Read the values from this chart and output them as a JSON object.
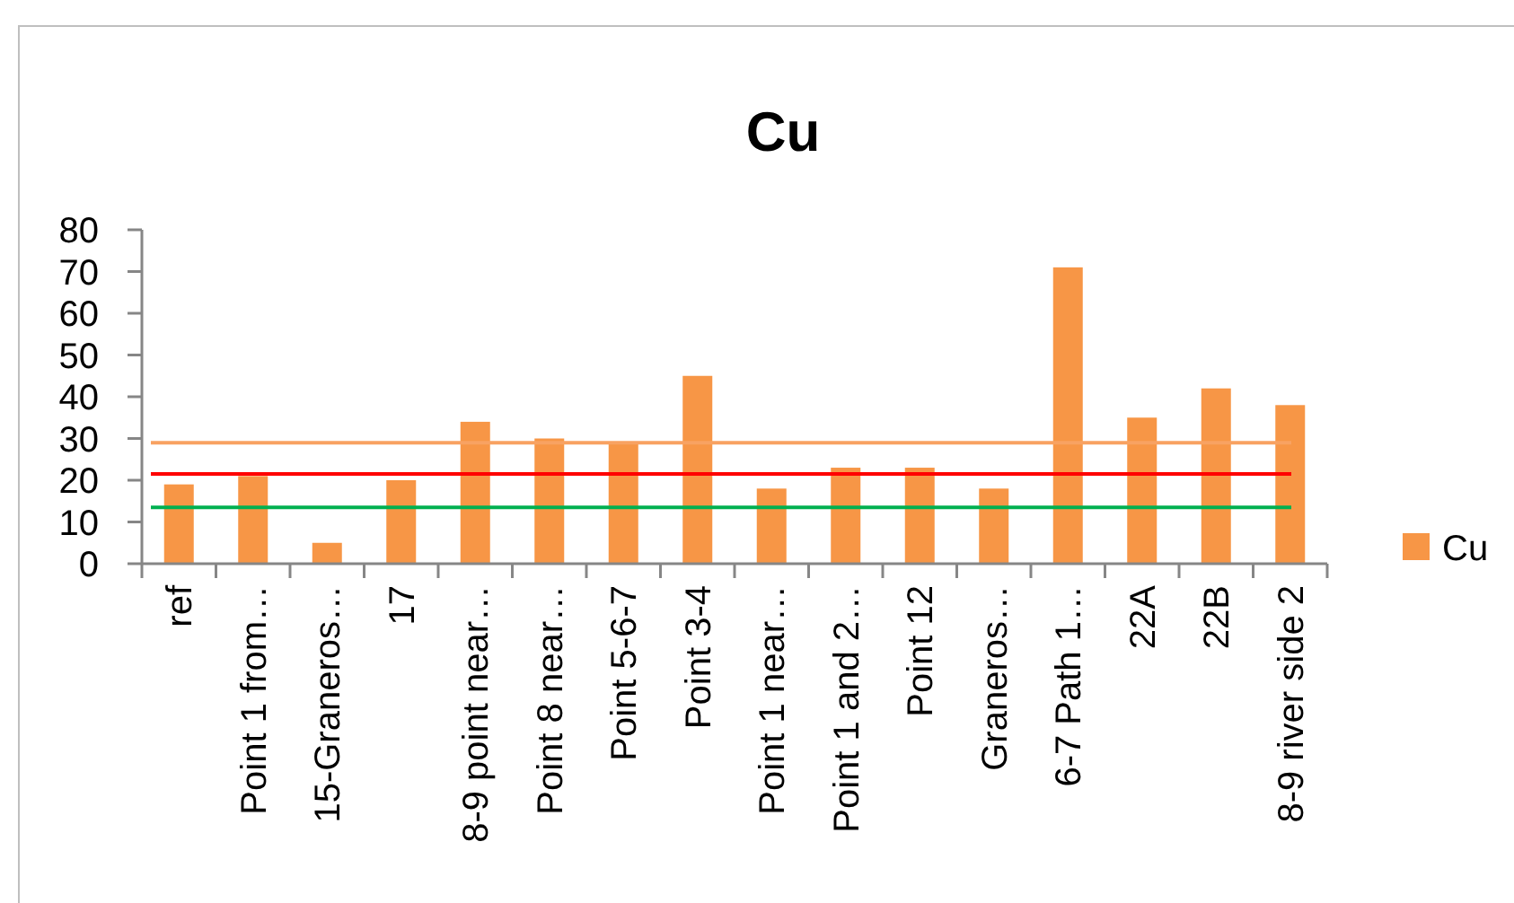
{
  "chart_data": {
    "type": "bar",
    "title": "Cu",
    "categories": [
      "ref",
      "Point 1 from…",
      "15-Graneros…",
      "17",
      "8-9 point near…",
      "Point 8 near…",
      "Point 5-6-7",
      "Point 3-4",
      "Point 1 near…",
      "Point 1 and 2…",
      "Point 12",
      "Graneros…",
      "6-7 Path 1…",
      "22A",
      "22B",
      "8-9 river side 2"
    ],
    "series": [
      {
        "name": "Cu",
        "color": "#f79646",
        "values": [
          19,
          21,
          5,
          20,
          34,
          30,
          29,
          45,
          18,
          23,
          23,
          18,
          71,
          35,
          42,
          38
        ]
      }
    ],
    "ylim": [
      0,
      80
    ],
    "yticks": [
      0,
      10,
      20,
      30,
      40,
      50,
      60,
      70,
      80
    ],
    "ref_lines": [
      {
        "axis": "y",
        "value": 29,
        "color": "#f8a262"
      },
      {
        "axis": "y",
        "value": 21.5,
        "color": "#ff0000"
      },
      {
        "axis": "y",
        "value": 13.5,
        "color": "#00b050"
      }
    ],
    "legend": "right"
  }
}
